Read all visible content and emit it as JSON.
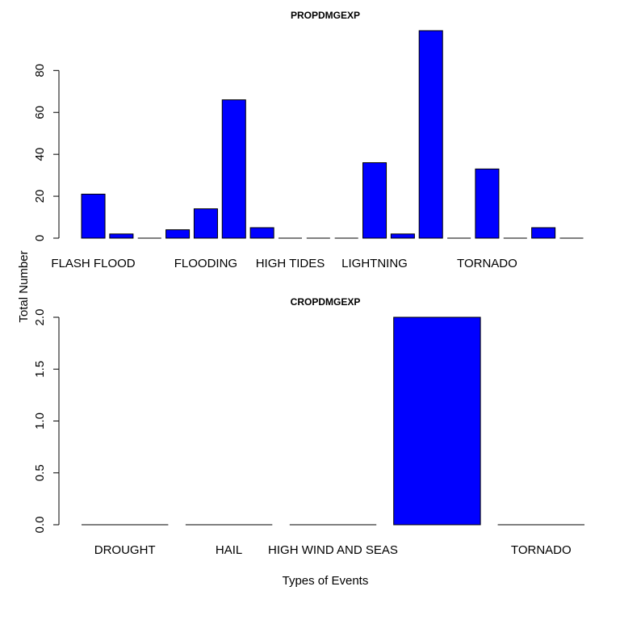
{
  "y_label": "Total Number",
  "chart_data": [
    {
      "type": "bar",
      "title": "PROPDMGEXP",
      "categories": [
        "FLASH FLOOD",
        null,
        null,
        null,
        "FLOODING",
        null,
        null,
        "HIGH TIDES",
        null,
        null,
        "LIGHTNING",
        null,
        null,
        null,
        "TORNADO",
        null,
        null,
        null
      ],
      "values": [
        21,
        2,
        0,
        4,
        14,
        66,
        5,
        0,
        0,
        0,
        36,
        2,
        99,
        0,
        33,
        0,
        5,
        0
      ],
      "color": "#0000ff",
      "ylim": [
        0,
        99
      ],
      "yticks": [
        0,
        20,
        40,
        60,
        80
      ]
    },
    {
      "type": "bar",
      "title": "CROPDMGEXP",
      "x_label": "Types of Events",
      "categories": [
        "DROUGHT",
        "HAIL",
        "HIGH WIND AND SEAS",
        null,
        "TORNADO"
      ],
      "values": [
        0,
        0,
        0,
        2,
        0
      ],
      "color": "#0000ff",
      "ylim": [
        0,
        2
      ],
      "yticks": [
        {
          "value": 0,
          "label": "0.0"
        },
        {
          "value": 0.5,
          "label": "0.5"
        },
        {
          "value": 1,
          "label": "1.0"
        },
        {
          "value": 1.5,
          "label": "1.5"
        },
        {
          "value": 2,
          "label": "2.0"
        }
      ]
    }
  ]
}
